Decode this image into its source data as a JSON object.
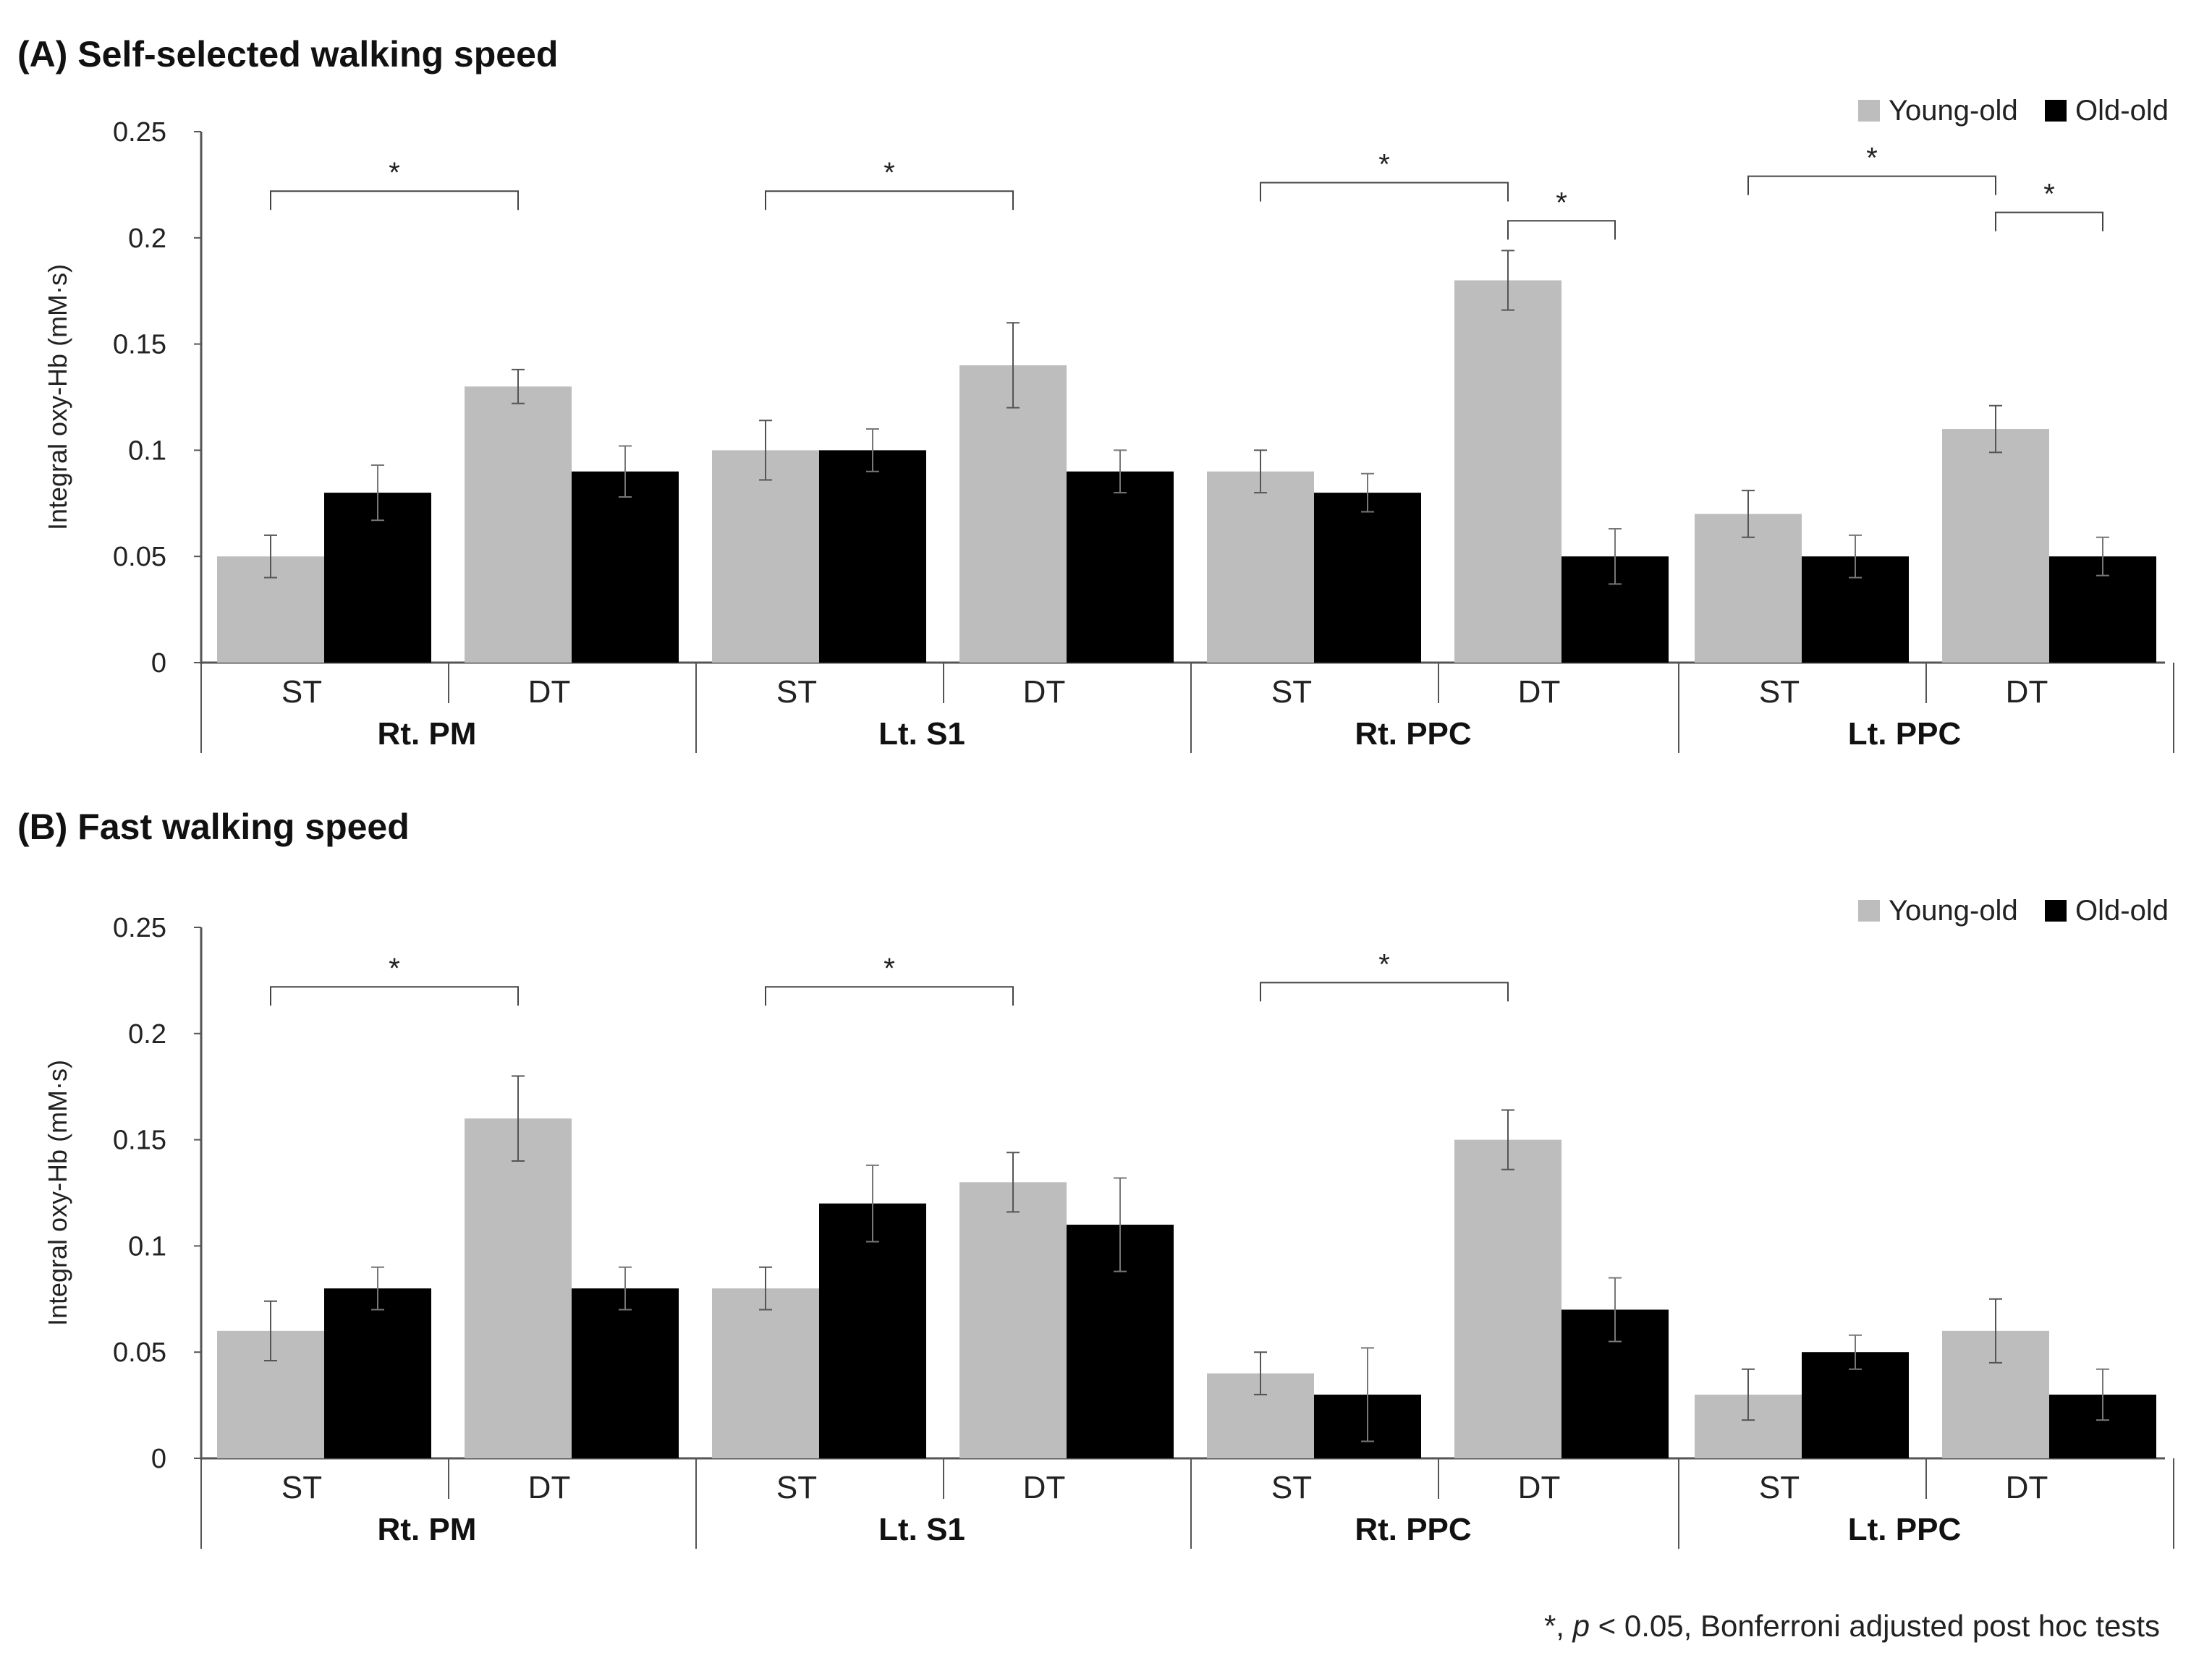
{
  "footnote": {
    "prefix": "*, ",
    "p": "p",
    "suffix": " < 0.05, Bonferroni adjusted post hoc tests"
  },
  "chart_data": [
    {
      "type": "bar",
      "title": "(A) Self-selected walking speed",
      "ylabel": "Integral oxy-Hb (mM·s)",
      "ylim": [
        0,
        0.25
      ],
      "yticks": [
        "0",
        "0.05",
        "0.1",
        "0.15",
        "0.2",
        "0.25"
      ],
      "regions": [
        "Rt. PM",
        "Lt. S1",
        "Rt. PPC",
        "Lt. PPC"
      ],
      "conditions": [
        "ST",
        "DT"
      ],
      "legend_position": "top-right",
      "colors": {
        "Young-old": "#bdbdbd",
        "Old-old": "#000000"
      },
      "series": [
        {
          "name": "Young-old",
          "values": [
            0.05,
            0.13,
            0.1,
            0.14,
            0.09,
            0.18,
            0.07,
            0.11
          ],
          "errors": [
            0.01,
            0.008,
            0.014,
            0.02,
            0.01,
            0.014,
            0.011,
            0.011
          ]
        },
        {
          "name": "Old-old",
          "values": [
            0.08,
            0.09,
            0.1,
            0.09,
            0.08,
            0.05,
            0.05,
            0.05
          ],
          "errors": [
            0.013,
            0.012,
            0.01,
            0.01,
            0.009,
            0.013,
            0.01,
            0.009
          ]
        }
      ],
      "significance": [
        {
          "from_bar": 0,
          "to_bar": 2,
          "level": 0.222,
          "label": "*"
        },
        {
          "from_bar": 4,
          "to_bar": 6,
          "level": 0.222,
          "label": "*"
        },
        {
          "from_bar": 8,
          "to_bar": 10,
          "level": 0.226,
          "label": "*"
        },
        {
          "from_bar": 10,
          "to_bar": 11,
          "level": 0.208,
          "label": "*"
        },
        {
          "from_bar": 12,
          "to_bar": 14,
          "level": 0.229,
          "label": "*"
        },
        {
          "from_bar": 14,
          "to_bar": 15,
          "level": 0.212,
          "label": "*"
        }
      ]
    },
    {
      "type": "bar",
      "title": "(B) Fast walking speed",
      "ylabel": "Integral oxy-Hb (mM·s)",
      "ylim": [
        0,
        0.25
      ],
      "yticks": [
        "0",
        "0.05",
        "0.1",
        "0.15",
        "0.2",
        "0.25"
      ],
      "regions": [
        "Rt. PM",
        "Lt. S1",
        "Rt. PPC",
        "Lt. PPC"
      ],
      "conditions": [
        "ST",
        "DT"
      ],
      "legend_position": "top-right",
      "colors": {
        "Young-old": "#bdbdbd",
        "Old-old": "#000000"
      },
      "series": [
        {
          "name": "Young-old",
          "values": [
            0.06,
            0.16,
            0.08,
            0.13,
            0.04,
            0.15,
            0.03,
            0.06
          ],
          "errors": [
            0.014,
            0.02,
            0.01,
            0.014,
            0.01,
            0.014,
            0.012,
            0.015
          ]
        },
        {
          "name": "Old-old",
          "values": [
            0.08,
            0.08,
            0.12,
            0.11,
            0.03,
            0.07,
            0.05,
            0.03
          ],
          "errors": [
            0.01,
            0.01,
            0.018,
            0.022,
            0.022,
            0.015,
            0.008,
            0.012
          ]
        }
      ],
      "significance": [
        {
          "from_bar": 0,
          "to_bar": 2,
          "level": 0.222,
          "label": "*"
        },
        {
          "from_bar": 4,
          "to_bar": 6,
          "level": 0.222,
          "label": "*"
        },
        {
          "from_bar": 8,
          "to_bar": 10,
          "level": 0.224,
          "label": "*"
        }
      ]
    }
  ]
}
